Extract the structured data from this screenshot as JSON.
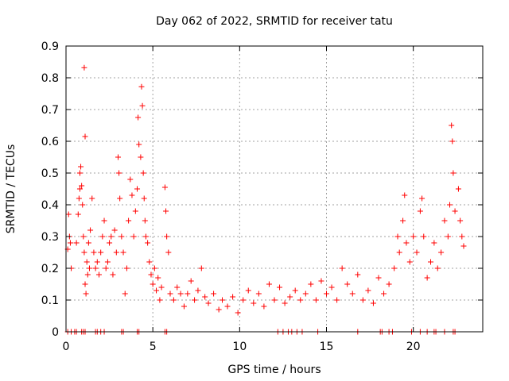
{
  "chart_data": {
    "type": "scatter",
    "title": "Day 062 of 2022, SRMTID for receiver tatu",
    "xlabel": "GPS time / hours",
    "ylabel": "SRMTID / TECUs",
    "xlim": [
      0,
      24
    ],
    "ylim": [
      0,
      0.9
    ],
    "xticks": [
      "0",
      "5",
      "10",
      "15",
      "20"
    ],
    "xtick_values": [
      0,
      5,
      10,
      15,
      20
    ],
    "yticks": [
      "0",
      "0.1",
      "0.2",
      "0.3",
      "0.4",
      "0.5",
      "0.6",
      "0.7",
      "0.8",
      "0.9"
    ],
    "ytick_values": [
      0,
      0.1,
      0.2,
      0.3,
      0.4,
      0.5,
      0.6,
      0.7,
      0.8,
      0.9
    ],
    "grid": true,
    "marker": "+",
    "color": "#ff0000",
    "series": [
      {
        "name": "SRMTID",
        "points": [
          [
            0.1,
            0.26
          ],
          [
            0.15,
            0.37
          ],
          [
            0.2,
            0.3
          ],
          [
            0.25,
            0.28
          ],
          [
            0.3,
            0.2
          ],
          [
            0.6,
            0.28
          ],
          [
            0.7,
            0.37
          ],
          [
            0.75,
            0.42
          ],
          [
            0.8,
            0.45
          ],
          [
            0.8,
            0.5
          ],
          [
            0.85,
            0.52
          ],
          [
            0.9,
            0.46
          ],
          [
            0.95,
            0.4
          ],
          [
            1.0,
            0.3
          ],
          [
            1.05,
            0.25
          ],
          [
            1.1,
            0.15
          ],
          [
            1.15,
            0.12
          ],
          [
            1.05,
            0.832
          ],
          [
            1.1,
            0.615
          ],
          [
            1.2,
            0.22
          ],
          [
            1.25,
            0.18
          ],
          [
            1.3,
            0.28
          ],
          [
            1.35,
            0.2
          ],
          [
            1.4,
            0.32
          ],
          [
            1.5,
            0.42
          ],
          [
            1.6,
            0.25
          ],
          [
            1.7,
            0.2
          ],
          [
            1.8,
            0.22
          ],
          [
            1.9,
            0.18
          ],
          [
            2.0,
            0.25
          ],
          [
            2.1,
            0.3
          ],
          [
            2.2,
            0.35
          ],
          [
            2.3,
            0.2
          ],
          [
            2.4,
            0.22
          ],
          [
            2.5,
            0.28
          ],
          [
            2.6,
            0.3
          ],
          [
            2.7,
            0.18
          ],
          [
            2.8,
            0.32
          ],
          [
            2.9,
            0.25
          ],
          [
            3.0,
            0.55
          ],
          [
            3.05,
            0.5
          ],
          [
            3.1,
            0.42
          ],
          [
            3.2,
            0.3
          ],
          [
            3.3,
            0.25
          ],
          [
            3.4,
            0.12
          ],
          [
            3.5,
            0.2
          ],
          [
            3.6,
            0.35
          ],
          [
            3.7,
            0.48
          ],
          [
            3.8,
            0.43
          ],
          [
            3.9,
            0.3
          ],
          [
            4.0,
            0.38
          ],
          [
            4.1,
            0.45
          ],
          [
            4.15,
            0.675
          ],
          [
            4.2,
            0.59
          ],
          [
            4.3,
            0.55
          ],
          [
            4.35,
            0.772
          ],
          [
            4.4,
            0.712
          ],
          [
            4.45,
            0.5
          ],
          [
            4.5,
            0.42
          ],
          [
            4.55,
            0.35
          ],
          [
            4.6,
            0.3
          ],
          [
            4.7,
            0.28
          ],
          [
            4.8,
            0.22
          ],
          [
            4.9,
            0.18
          ],
          [
            5.0,
            0.15
          ],
          [
            5.1,
            0.2
          ],
          [
            5.2,
            0.13
          ],
          [
            5.3,
            0.17
          ],
          [
            5.4,
            0.1
          ],
          [
            5.5,
            0.14
          ],
          [
            5.7,
            0.455
          ],
          [
            5.75,
            0.38
          ],
          [
            5.8,
            0.3
          ],
          [
            5.9,
            0.25
          ],
          [
            6.0,
            0.12
          ],
          [
            6.2,
            0.1
          ],
          [
            6.4,
            0.14
          ],
          [
            6.6,
            0.12
          ],
          [
            6.8,
            0.08
          ],
          [
            7.0,
            0.12
          ],
          [
            7.2,
            0.16
          ],
          [
            7.4,
            0.1
          ],
          [
            7.6,
            0.13
          ],
          [
            7.8,
            0.2
          ],
          [
            8.0,
            0.11
          ],
          [
            8.2,
            0.09
          ],
          [
            8.5,
            0.12
          ],
          [
            8.8,
            0.07
          ],
          [
            9.0,
            0.1
          ],
          [
            9.3,
            0.08
          ],
          [
            9.6,
            0.11
          ],
          [
            9.9,
            0.06
          ],
          [
            10.2,
            0.1
          ],
          [
            10.5,
            0.13
          ],
          [
            10.8,
            0.09
          ],
          [
            11.1,
            0.12
          ],
          [
            11.4,
            0.08
          ],
          [
            11.7,
            0.15
          ],
          [
            12.0,
            0.1
          ],
          [
            12.3,
            0.14
          ],
          [
            12.6,
            0.09
          ],
          [
            12.9,
            0.11
          ],
          [
            13.2,
            0.13
          ],
          [
            13.5,
            0.1
          ],
          [
            13.8,
            0.12
          ],
          [
            14.1,
            0.15
          ],
          [
            14.4,
            0.1
          ],
          [
            14.7,
            0.16
          ],
          [
            15.0,
            0.12
          ],
          [
            15.3,
            0.14
          ],
          [
            15.6,
            0.1
          ],
          [
            15.9,
            0.2
          ],
          [
            16.2,
            0.15
          ],
          [
            16.5,
            0.12
          ],
          [
            16.8,
            0.18
          ],
          [
            17.1,
            0.1
          ],
          [
            17.4,
            0.13
          ],
          [
            17.7,
            0.09
          ],
          [
            18.0,
            0.17
          ],
          [
            18.3,
            0.12
          ],
          [
            18.6,
            0.15
          ],
          [
            18.9,
            0.2
          ],
          [
            19.1,
            0.3
          ],
          [
            19.2,
            0.25
          ],
          [
            19.4,
            0.35
          ],
          [
            19.5,
            0.43
          ],
          [
            19.6,
            0.28
          ],
          [
            19.8,
            0.22
          ],
          [
            20.0,
            0.3
          ],
          [
            20.2,
            0.25
          ],
          [
            20.4,
            0.38
          ],
          [
            20.5,
            0.42
          ],
          [
            20.6,
            0.3
          ],
          [
            20.8,
            0.17
          ],
          [
            21.0,
            0.22
          ],
          [
            21.2,
            0.28
          ],
          [
            21.4,
            0.2
          ],
          [
            21.6,
            0.25
          ],
          [
            21.8,
            0.35
          ],
          [
            22.0,
            0.3
          ],
          [
            22.1,
            0.4
          ],
          [
            22.2,
            0.65
          ],
          [
            22.25,
            0.6
          ],
          [
            22.3,
            0.5
          ],
          [
            22.4,
            0.38
          ],
          [
            22.6,
            0.45
          ],
          [
            22.7,
            0.35
          ],
          [
            22.8,
            0.3
          ],
          [
            22.9,
            0.27
          ]
        ]
      }
    ],
    "zero_markers": [
      0.1,
      0.3,
      0.5,
      0.6,
      0.9,
      1.0,
      1.1,
      1.7,
      1.8,
      2.0,
      2.2,
      3.2,
      3.3,
      4.1,
      4.2,
      5.7,
      5.8,
      12.2,
      12.5,
      12.8,
      13.0,
      13.3,
      13.6,
      14.5,
      16.8,
      18.1,
      18.2,
      18.6,
      18.8,
      19.9,
      20.4,
      20.8,
      21.2,
      21.3,
      21.8,
      22.3,
      22.4
    ]
  }
}
